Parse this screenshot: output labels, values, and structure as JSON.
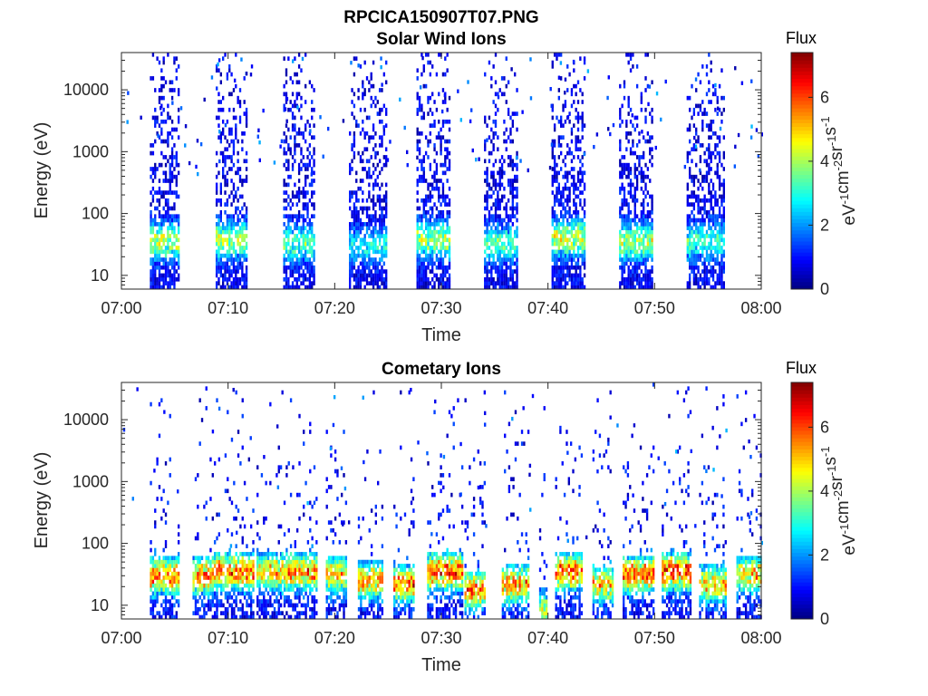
{
  "figure_title": "RPCICA150907T07.PNG",
  "chart_data": [
    {
      "type": "heatmap",
      "title": "Solar Wind Ions",
      "xlabel": "Time",
      "ylabel": "Energy (eV)",
      "x_tick_labels": [
        "07:00",
        "07:10",
        "07:20",
        "07:30",
        "07:40",
        "07:50",
        "08:00"
      ],
      "xlim": [
        "07:00",
        "08:00"
      ],
      "y_scale": "log",
      "ylim": [
        6,
        40000
      ],
      "y_ticks": [
        10,
        100,
        1000,
        10000
      ],
      "y_tick_labels": [
        "10",
        "100",
        "1000",
        "10000"
      ],
      "colorbar": {
        "title": "Flux",
        "label": "eV-1cm-2sr-1s-1",
        "label_parts": [
          {
            "base": "eV",
            "exp": "-1"
          },
          {
            "base": "cm",
            "exp": "-2"
          },
          {
            "base": "sr",
            "exp": "-1"
          },
          {
            "base": "s",
            "exp": "-1"
          }
        ],
        "range": [
          0,
          7.4
        ],
        "ticks": [
          0,
          2,
          4,
          6
        ],
        "tick_labels": [
          "0",
          "2",
          "4",
          "6"
        ],
        "colormap": "jet"
      },
      "bursts": [
        {
          "start": "07:02:40",
          "end": "07:05:20",
          "peak_energy_eV": 35,
          "peak_value": 5.0
        },
        {
          "start": "07:08:50",
          "end": "07:11:50",
          "peak_energy_eV": 38,
          "peak_value": 4.8
        },
        {
          "start": "07:15:10",
          "end": "07:18:10",
          "peak_energy_eV": 33,
          "peak_value": 4.0
        },
        {
          "start": "07:21:20",
          "end": "07:24:50",
          "peak_energy_eV": 30,
          "peak_value": 3.2
        },
        {
          "start": "07:27:40",
          "end": "07:30:50",
          "peak_energy_eV": 38,
          "peak_value": 4.8
        },
        {
          "start": "07:34:00",
          "end": "07:37:10",
          "peak_energy_eV": 33,
          "peak_value": 4.0
        },
        {
          "start": "07:40:20",
          "end": "07:43:30",
          "peak_energy_eV": 40,
          "peak_value": 5.2
        },
        {
          "start": "07:46:40",
          "end": "07:49:50",
          "peak_energy_eV": 35,
          "peak_value": 5.0
        },
        {
          "start": "07:53:00",
          "end": "07:56:30",
          "peak_energy_eV": 35,
          "peak_value": 3.8
        }
      ]
    },
    {
      "type": "heatmap",
      "title": "Cometary Ions",
      "xlabel": "Time",
      "ylabel": "Energy (eV)",
      "x_tick_labels": [
        "07:00",
        "07:10",
        "07:20",
        "07:30",
        "07:40",
        "07:50",
        "08:00"
      ],
      "xlim": [
        "07:00",
        "08:00"
      ],
      "y_scale": "log",
      "ylim": [
        6,
        40000
      ],
      "y_ticks": [
        10,
        100,
        1000,
        10000
      ],
      "y_tick_labels": [
        "10",
        "100",
        "1000",
        "10000"
      ],
      "colorbar": {
        "title": "Flux",
        "label": "eV-1cm-2sr-1s-1",
        "label_parts": [
          {
            "base": "eV",
            "exp": "-1"
          },
          {
            "base": "cm",
            "exp": "-2"
          },
          {
            "base": "sr",
            "exp": "-1"
          },
          {
            "base": "s",
            "exp": "-1"
          }
        ],
        "range": [
          0,
          7.4
        ],
        "ticks": [
          0,
          2,
          4,
          6
        ],
        "tick_labels": [
          "0",
          "2",
          "4",
          "6"
        ],
        "colormap": "jet"
      },
      "bursts": [
        {
          "start": "07:02:40",
          "end": "07:05:20",
          "peak_energy_eV": 30,
          "peak_value": 6.8
        },
        {
          "start": "07:06:40",
          "end": "07:08:30",
          "peak_energy_eV": 30,
          "peak_value": 6.5
        },
        {
          "start": "07:08:40",
          "end": "07:12:20",
          "peak_energy_eV": 35,
          "peak_value": 6.8
        },
        {
          "start": "07:12:40",
          "end": "07:15:00",
          "peak_energy_eV": 35,
          "peak_value": 5.8
        },
        {
          "start": "07:15:00",
          "end": "07:18:20",
          "peak_energy_eV": 35,
          "peak_value": 6.5
        },
        {
          "start": "07:19:10",
          "end": "07:21:00",
          "peak_energy_eV": 32,
          "peak_value": 5.8
        },
        {
          "start": "07:22:10",
          "end": "07:24:30",
          "peak_energy_eV": 25,
          "peak_value": 6.2
        },
        {
          "start": "07:25:30",
          "end": "07:27:20",
          "peak_energy_eV": 22,
          "peak_value": 6.8
        },
        {
          "start": "07:28:40",
          "end": "07:32:00",
          "peak_energy_eV": 35,
          "peak_value": 7.0
        },
        {
          "start": "07:32:10",
          "end": "07:34:00",
          "peak_energy_eV": 18,
          "peak_value": 6.8
        },
        {
          "start": "07:35:40",
          "end": "07:38:10",
          "peak_energy_eV": 22,
          "peak_value": 6.5
        },
        {
          "start": "07:39:10",
          "end": "07:39:50",
          "peak_energy_eV": 8,
          "peak_value": 5.5
        },
        {
          "start": "07:40:40",
          "end": "07:43:10",
          "peak_energy_eV": 35,
          "peak_value": 6.8
        },
        {
          "start": "07:44:10",
          "end": "07:46:10",
          "peak_energy_eV": 22,
          "peak_value": 5.8
        },
        {
          "start": "07:47:00",
          "end": "07:50:00",
          "peak_energy_eV": 32,
          "peak_value": 6.8
        },
        {
          "start": "07:50:40",
          "end": "07:53:20",
          "peak_energy_eV": 35,
          "peak_value": 7.2
        },
        {
          "start": "07:54:10",
          "end": "07:56:40",
          "peak_energy_eV": 22,
          "peak_value": 6.2
        },
        {
          "start": "07:57:40",
          "end": "08:00:00",
          "peak_energy_eV": 32,
          "peak_value": 6.0
        }
      ]
    }
  ]
}
